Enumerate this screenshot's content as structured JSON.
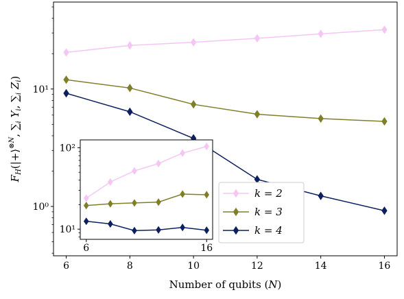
{
  "chart_data": [
    {
      "type": "line",
      "xlabel": "Number of qubits (N)",
      "ylabel": "F_H(|+⟩^⊗N, ∑_i Y_i, ∑_i Z_i)",
      "yscale": "log",
      "xlim": [
        5.6,
        16.4
      ],
      "ylim": [
        0.38,
        55
      ],
      "xticks": [
        6,
        8,
        10,
        12,
        14,
        16
      ],
      "yticks": [
        {
          "value": 1,
          "label": "10⁰"
        },
        {
          "value": 10,
          "label": "10¹"
        }
      ],
      "grid": false,
      "legend": "lower-right",
      "series": [
        {
          "name": "k = 2",
          "color": "#f4c6f4",
          "x": [
            6,
            8,
            10,
            12,
            14,
            16
          ],
          "y": [
            20.5,
            23.5,
            25,
            27,
            29.5,
            32
          ]
        },
        {
          "name": "k = 3",
          "color": "#7f7f2a",
          "x": [
            6,
            8,
            10,
            12,
            14,
            16
          ],
          "y": [
            12,
            10.2,
            7.4,
            6.1,
            5.6,
            5.3
          ]
        },
        {
          "name": "k = 4",
          "color": "#0c1f5e",
          "x": [
            6,
            8,
            10,
            12,
            14,
            16
          ],
          "y": [
            9.2,
            6.4,
            3.8,
            1.7,
            1.23,
            0.92
          ]
        }
      ]
    },
    {
      "type": "line",
      "inset": true,
      "yscale": "log",
      "xlim": [
        5.5,
        16.5
      ],
      "ylim": [
        7.5,
        125
      ],
      "xticks": [
        6,
        16
      ],
      "yticks": [
        {
          "value": 10,
          "label": "10¹"
        },
        {
          "value": 100,
          "label": "10²"
        }
      ],
      "series": [
        {
          "name": "k = 2",
          "color": "#f4c6f4",
          "x": [
            6,
            8,
            10,
            12,
            14,
            16
          ],
          "y": [
            24,
            38,
            52,
            64,
            86,
            104
          ]
        },
        {
          "name": "k = 3",
          "color": "#7f7f2a",
          "x": [
            6,
            8,
            10,
            12,
            14,
            16
          ],
          "y": [
            19.5,
            20.5,
            21,
            21.5,
            27,
            26.5
          ]
        },
        {
          "name": "k = 4",
          "color": "#0c1f5e",
          "x": [
            6,
            8,
            10,
            12,
            14,
            16
          ],
          "y": [
            12.5,
            11.6,
            9.6,
            9.8,
            10.5,
            9.7
          ]
        }
      ]
    }
  ]
}
